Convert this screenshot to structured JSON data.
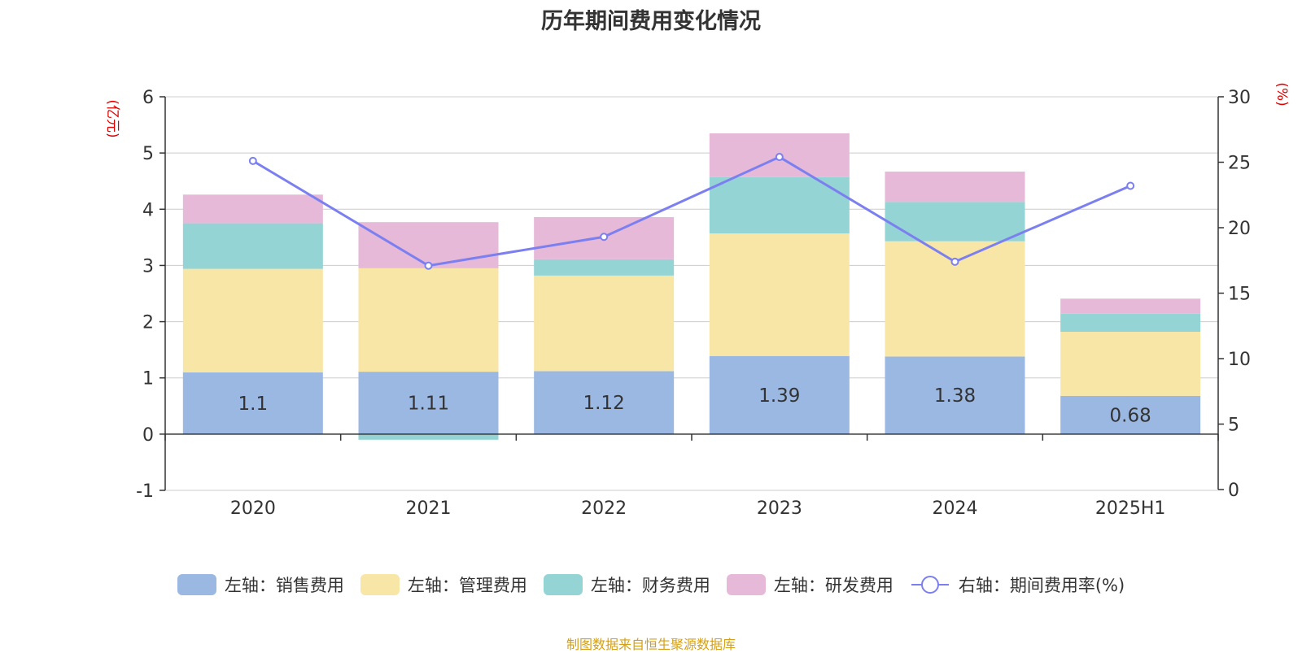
{
  "title": "历年期间费用变化情况",
  "source_note": "制图数据来自恒生聚源数据库",
  "colors": {
    "sales": "#9bb8e3",
    "admin": "#f8e6a7",
    "finance": "#95d4d4",
    "rd": "#e6b9d9",
    "rate": "#7b7ff0",
    "axis_unit": "#e00000",
    "source": "#d4a017",
    "grid": "#cccccc",
    "axis": "#333333",
    "text": "#333333"
  },
  "legend": [
    {
      "label": "左轴：销售费用",
      "key": "sales"
    },
    {
      "label": "左轴：管理费用",
      "key": "admin"
    },
    {
      "label": "左轴：财务费用",
      "key": "finance"
    },
    {
      "label": "左轴：研发费用",
      "key": "rd"
    },
    {
      "label": "右轴：期间费用率(%)",
      "key": "rate"
    }
  ],
  "chart_data": {
    "type": "bar",
    "stacked": true,
    "title": "历年期间费用变化情况",
    "categories": [
      "2020",
      "2021",
      "2022",
      "2023",
      "2024",
      "2025H1"
    ],
    "y_left": {
      "unit": "(亿元)",
      "ylim": [
        -1,
        6
      ],
      "ticks": [
        -1,
        0,
        1,
        2,
        3,
        4,
        5,
        6
      ]
    },
    "y_right": {
      "unit": "(%)",
      "ylim": [
        0,
        30
      ],
      "ticks": [
        0,
        5,
        10,
        15,
        20,
        25,
        30
      ]
    },
    "series": [
      {
        "name": "左轴：销售费用",
        "key": "sales",
        "axis": "left",
        "type": "bar",
        "values": [
          1.1,
          1.11,
          1.12,
          1.39,
          1.38,
          0.68
        ],
        "data_labels": [
          "1.1",
          "1.11",
          "1.12",
          "1.39",
          "1.38",
          "0.68"
        ]
      },
      {
        "name": "左轴：管理费用",
        "key": "admin",
        "axis": "left",
        "type": "bar",
        "values": [
          1.84,
          1.84,
          1.7,
          2.18,
          2.05,
          1.14
        ]
      },
      {
        "name": "左轴：财务费用",
        "key": "finance",
        "axis": "left",
        "type": "bar",
        "values": [
          0.81,
          -0.1,
          0.29,
          1.0,
          0.7,
          0.32
        ]
      },
      {
        "name": "左轴：研发费用",
        "key": "rd",
        "axis": "left",
        "type": "bar",
        "values": [
          0.51,
          0.82,
          0.75,
          0.78,
          0.54,
          0.27
        ]
      },
      {
        "name": "右轴：期间费用率(%)",
        "key": "rate",
        "axis": "right",
        "type": "line",
        "values": [
          25.1,
          17.1,
          19.3,
          25.4,
          17.4,
          23.2
        ]
      }
    ],
    "grid": true,
    "legend_position": "bottom"
  }
}
